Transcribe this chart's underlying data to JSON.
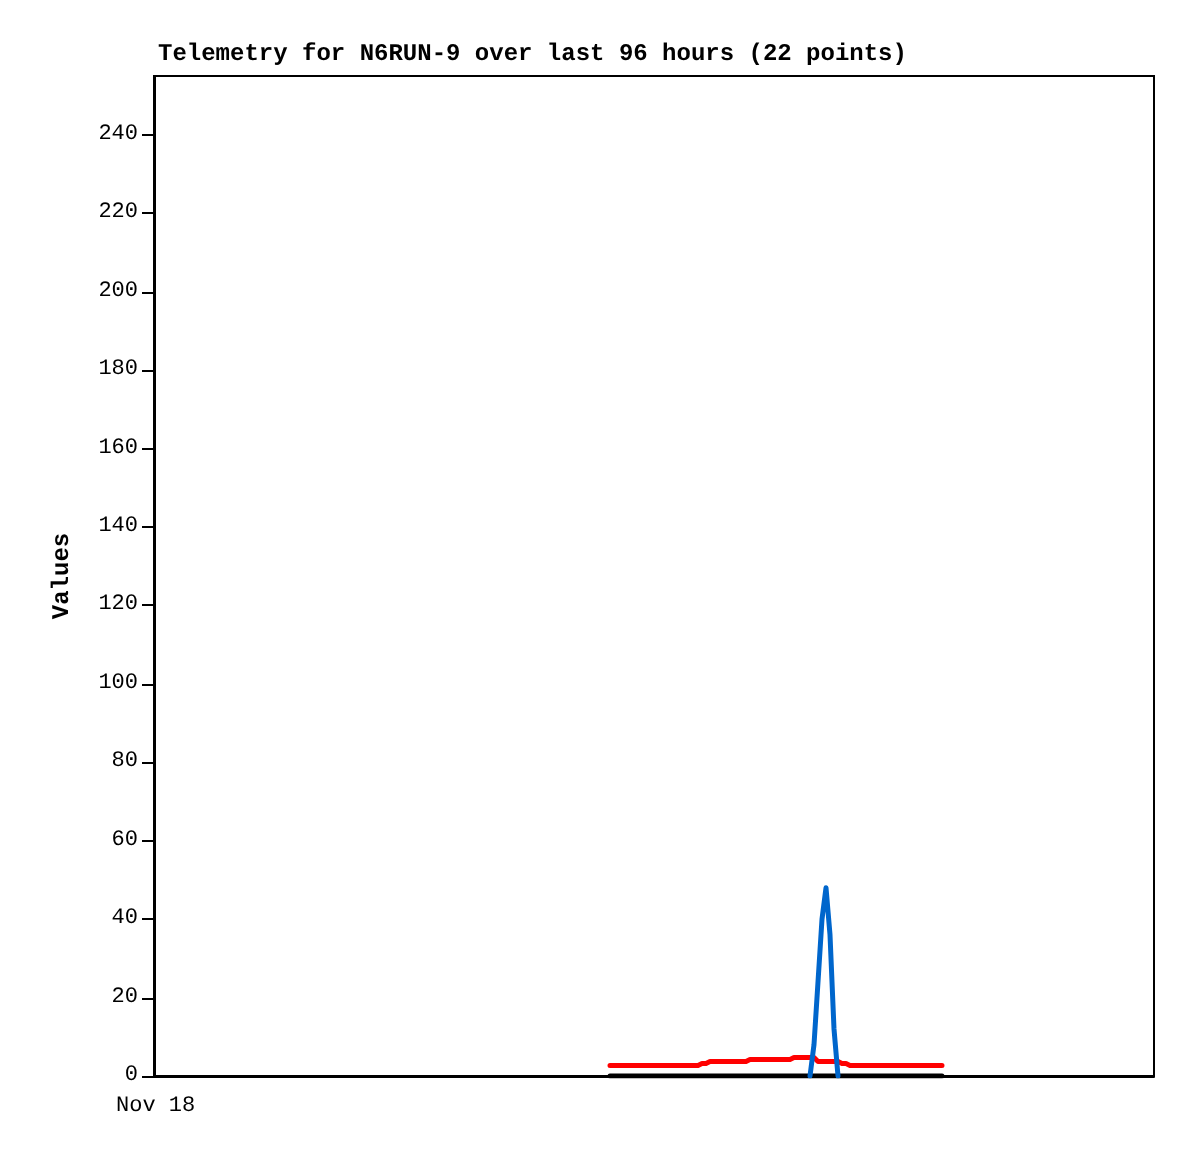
{
  "chart_data": {
    "type": "line",
    "title": "Telemetry for N6RUN-9 over last 96 hours (22 points)",
    "ylabel": "Values",
    "annotations": [
      "Nov 18"
    ],
    "tick_labels": "y",
    "ylim": [
      0,
      255
    ],
    "yticks": [
      0,
      20,
      40,
      60,
      80,
      100,
      120,
      140,
      160,
      180,
      200,
      220,
      240
    ],
    "grid": false,
    "line_style": "solid",
    "categories": [
      null,
      null,
      null,
      null,
      null,
      null,
      null,
      null,
      null,
      null,
      null,
      null,
      null,
      null,
      null,
      null,
      null,
      null,
      null,
      null,
      null,
      null,
      null,
      null,
      null,
      null,
      null,
      null,
      null,
      null,
      null,
      null,
      null,
      null,
      null,
      null,
      null,
      null,
      null,
      null,
      null,
      null,
      null,
      null,
      null,
      null,
      null,
      null,
      null,
      null,
      null,
      null,
      null,
      null,
      null,
      null,
      null,
      null,
      null,
      null,
      null,
      null,
      null,
      null,
      null,
      null,
      null,
      null,
      null,
      null,
      null,
      null,
      null,
      null,
      null,
      null,
      null,
      null,
      null,
      null,
      null,
      null,
      null,
      null,
      null,
      null,
      null,
      null,
      null,
      null,
      null,
      null,
      null,
      null,
      null,
      null,
      null,
      null,
      null,
      null,
      null,
      null,
      null,
      null,
      null,
      null,
      null,
      null,
      null,
      null,
      null,
      null,
      null,
      null,
      null,
      null,
      null,
      null,
      null,
      null,
      null,
      null,
      null,
      null,
      null,
      null,
      null,
      null,
      null,
      null,
      null,
      null,
      null,
      null,
      null,
      null,
      null,
      null,
      null,
      null,
      null,
      null,
      null,
      null,
      null,
      null,
      null,
      null,
      null,
      null,
      null,
      null,
      null,
      null,
      null,
      null,
      null,
      null,
      null,
      null,
      null,
      null,
      null,
      null,
      null,
      null,
      null,
      null,
      null,
      null,
      null,
      null,
      null,
      null,
      null,
      null,
      null,
      null,
      null,
      null,
      null,
      null,
      null,
      null,
      null,
      null,
      null,
      null,
      null,
      null,
      null,
      null,
      null,
      null,
      null,
      null,
      null,
      null,
      null,
      null,
      null,
      null,
      null,
      null,
      null,
      null,
      null,
      null,
      null,
      null,
      null,
      null,
      null,
      null,
      null,
      null,
      null,
      null,
      null,
      null,
      null,
      null,
      null,
      null,
      null,
      null,
      null,
      null,
      null,
      null,
      null,
      null,
      null,
      null,
      null,
      null,
      null,
      null,
      null,
      null,
      null,
      null,
      null,
      null,
      null,
      null,
      null,
      null,
      null,
      null,
      null
    ],
    "series": [
      {
        "color": "#000000",
        "values": [
          null,
          null,
          null,
          null,
          null,
          null,
          null,
          null,
          null,
          null,
          null,
          null,
          null,
          null,
          null,
          null,
          null,
          null,
          null,
          null,
          null,
          null,
          null,
          null,
          null,
          null,
          null,
          null,
          null,
          null,
          null,
          null,
          null,
          null,
          null,
          null,
          null,
          null,
          null,
          null,
          null,
          null,
          null,
          null,
          null,
          null,
          null,
          null,
          null,
          null,
          null,
          null,
          null,
          null,
          null,
          null,
          null,
          null,
          null,
          null,
          null,
          null,
          null,
          null,
          null,
          null,
          null,
          null,
          null,
          null,
          null,
          null,
          null,
          null,
          null,
          null,
          null,
          null,
          null,
          null,
          null,
          null,
          null,
          null,
          null,
          null,
          null,
          null,
          null,
          null,
          null,
          null,
          null,
          null,
          null,
          null,
          null,
          null,
          null,
          null,
          null,
          null,
          null,
          null,
          null,
          null,
          null,
          null,
          null,
          null,
          null,
          null,
          null,
          null,
          0,
          0,
          0,
          0,
          0,
          0,
          0,
          0,
          0,
          0,
          0,
          0,
          0,
          0,
          0,
          0,
          0,
          0,
          0,
          0,
          0,
          0,
          0,
          0,
          0,
          0,
          0,
          0,
          0,
          0,
          0,
          0,
          0,
          0,
          0,
          0,
          0,
          0,
          0,
          0,
          0,
          0,
          0,
          0,
          0,
          0,
          0,
          0,
          0,
          0,
          0,
          0,
          0,
          0,
          0,
          0,
          0,
          0,
          0,
          0,
          0,
          0,
          0,
          0,
          0,
          0,
          0,
          0,
          0,
          0,
          0,
          0,
          0,
          0,
          0,
          0,
          0,
          0,
          0,
          0,
          0,
          0,
          0,
          0,
          null,
          null,
          null,
          null,
          null,
          null,
          null,
          null,
          null,
          null,
          null,
          null,
          null,
          null,
          null,
          null,
          null,
          null,
          null,
          null,
          null,
          null,
          null,
          null,
          null,
          null,
          null,
          null,
          null,
          null,
          null,
          null,
          null,
          null,
          null,
          null,
          null,
          null,
          null,
          null,
          null,
          null,
          null,
          null,
          null,
          null,
          null,
          null,
          null,
          null,
          null,
          null,
          null
        ]
      },
      {
        "color": "#ff0000",
        "values": [
          null,
          null,
          null,
          null,
          null,
          null,
          null,
          null,
          null,
          null,
          null,
          null,
          null,
          null,
          null,
          null,
          null,
          null,
          null,
          null,
          null,
          null,
          null,
          null,
          null,
          null,
          null,
          null,
          null,
          null,
          null,
          null,
          null,
          null,
          null,
          null,
          null,
          null,
          null,
          null,
          null,
          null,
          null,
          null,
          null,
          null,
          null,
          null,
          null,
          null,
          null,
          null,
          null,
          null,
          null,
          null,
          null,
          null,
          null,
          null,
          null,
          null,
          null,
          null,
          null,
          null,
          null,
          null,
          null,
          null,
          null,
          null,
          null,
          null,
          null,
          null,
          null,
          null,
          null,
          null,
          null,
          null,
          null,
          null,
          null,
          null,
          null,
          null,
          null,
          null,
          null,
          null,
          null,
          null,
          null,
          null,
          null,
          null,
          null,
          null,
          null,
          null,
          null,
          null,
          null,
          null,
          null,
          null,
          null,
          null,
          null,
          null,
          null,
          null,
          2.7,
          2.7,
          2.7,
          2.7,
          2.7,
          2.7,
          2.7,
          2.7,
          2.7,
          2.7,
          2.7,
          2.7,
          2.7,
          2.7,
          2.7,
          2.7,
          2.7,
          2.7,
          2.7,
          2.7,
          2.7,
          2.7,
          2.7,
          3.2,
          3.2,
          3.7,
          3.7,
          3.7,
          3.7,
          3.7,
          3.7,
          3.7,
          3.7,
          3.7,
          3.7,
          4.2,
          4.2,
          4.2,
          4.2,
          4.2,
          4.2,
          4.2,
          4.2,
          4.2,
          4.2,
          4.2,
          4.7,
          4.7,
          4.7,
          4.7,
          4.7,
          4.7,
          3.7,
          3.7,
          3.7,
          3.7,
          3.7,
          3.7,
          3.2,
          3.2,
          2.7,
          2.7,
          2.7,
          2.7,
          2.7,
          2.7,
          2.7,
          2.7,
          2.7,
          2.7,
          2.7,
          2.7,
          2.7,
          2.7,
          2.7,
          2.7,
          2.7,
          2.7,
          2.7,
          2.7,
          2.7,
          2.7,
          2.7,
          2.7,
          null,
          null,
          null,
          null,
          null,
          null,
          null,
          null,
          null,
          null,
          null,
          null,
          null,
          null,
          null,
          null,
          null,
          null,
          null,
          null,
          null,
          null,
          null,
          null,
          null,
          null,
          null,
          null,
          null,
          null,
          null,
          null,
          null,
          null,
          null,
          null,
          null,
          null,
          null,
          null,
          null,
          null,
          null,
          null,
          null,
          null,
          null,
          null,
          null,
          null,
          null,
          null,
          null
        ]
      },
      {
        "color": "#0066cc",
        "values": [
          null,
          null,
          null,
          null,
          null,
          null,
          null,
          null,
          null,
          null,
          null,
          null,
          null,
          null,
          null,
          null,
          null,
          null,
          null,
          null,
          null,
          null,
          null,
          null,
          null,
          null,
          null,
          null,
          null,
          null,
          null,
          null,
          null,
          null,
          null,
          null,
          null,
          null,
          null,
          null,
          null,
          null,
          null,
          null,
          null,
          null,
          null,
          null,
          null,
          null,
          null,
          null,
          null,
          null,
          null,
          null,
          null,
          null,
          null,
          null,
          null,
          null,
          null,
          null,
          null,
          null,
          null,
          null,
          null,
          null,
          null,
          null,
          null,
          null,
          null,
          null,
          null,
          null,
          null,
          null,
          null,
          null,
          null,
          null,
          null,
          null,
          null,
          null,
          null,
          null,
          null,
          null,
          null,
          null,
          null,
          null,
          null,
          null,
          null,
          null,
          null,
          null,
          null,
          null,
          null,
          null,
          null,
          null,
          null,
          null,
          null,
          null,
          null,
          null,
          null,
          null,
          null,
          null,
          null,
          null,
          null,
          null,
          null,
          null,
          null,
          null,
          null,
          null,
          null,
          null,
          null,
          null,
          null,
          null,
          null,
          null,
          null,
          null,
          null,
          null,
          null,
          null,
          null,
          null,
          null,
          null,
          null,
          null,
          null,
          null,
          null,
          null,
          null,
          null,
          null,
          null,
          null,
          null,
          null,
          null,
          null,
          null,
          null,
          null,
          0,
          8,
          24,
          40,
          48,
          36,
          12,
          0,
          null,
          null,
          null,
          null,
          null,
          null,
          null,
          null,
          null,
          null,
          null,
          null,
          null,
          null,
          null,
          null,
          null,
          null,
          null,
          null,
          null,
          null,
          null,
          null,
          null,
          null,
          null,
          null,
          null,
          null,
          null,
          null,
          null,
          null,
          null,
          null,
          null,
          null,
          null,
          null,
          null,
          null,
          null,
          null,
          null,
          null,
          null,
          null,
          null,
          null,
          null,
          null,
          null,
          null,
          null,
          null,
          null,
          null,
          null,
          null,
          null,
          null,
          null,
          null,
          null,
          null,
          null,
          null,
          null,
          null,
          null,
          null,
          null,
          null,
          null,
          null,
          null,
          null,
          null
        ]
      }
    ]
  }
}
